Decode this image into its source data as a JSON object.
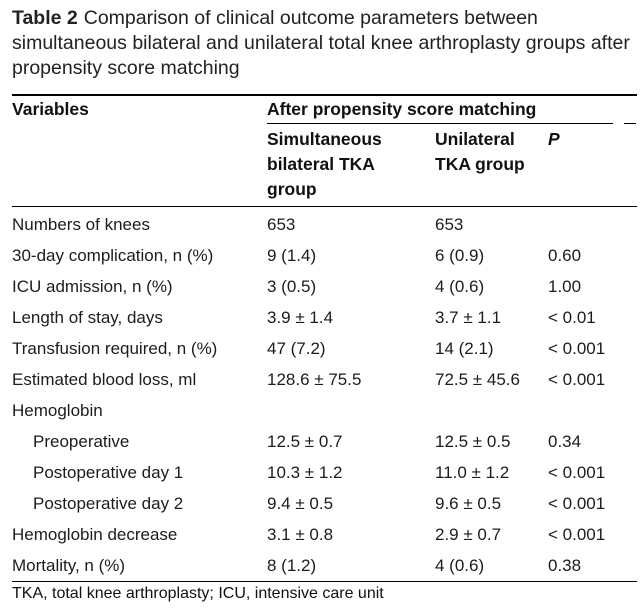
{
  "caption": {
    "label": "Table 2",
    "text": "Comparison of clinical outcome parameters between simultaneous bilateral and unilateral total knee arthroplasty groups after propensity score matching"
  },
  "header": {
    "variables": "Variables",
    "group": "After propensity score matching",
    "col1": [
      "Simultaneous",
      "bilateral TKA",
      "group"
    ],
    "col2": [
      "Unilateral",
      "TKA group"
    ],
    "col3": "P"
  },
  "rows": [
    {
      "variable": "Numbers of knees",
      "bilateral": "653",
      "unilateral": "653",
      "p": ""
    },
    {
      "variable": "30-day complication, n (%)",
      "bilateral": "9 (1.4)",
      "unilateral": "6 (0.9)",
      "p": "0.60"
    },
    {
      "variable": "ICU admission, n (%)",
      "bilateral": "3 (0.5)",
      "unilateral": "4 (0.6)",
      "p": "1.00"
    },
    {
      "variable": "Length of stay, days",
      "bilateral": "3.9 ± 1.4",
      "unilateral": "3.7 ± 1.1",
      "p": "< 0.01"
    },
    {
      "variable": "Transfusion required, n (%)",
      "bilateral": "47 (7.2)",
      "unilateral": "14 (2.1)",
      "p": "< 0.001"
    },
    {
      "variable": "Estimated blood loss, ml",
      "bilateral": "128.6 ± 75.5",
      "unilateral": "72.5 ± 45.6",
      "p": "< 0.001"
    },
    {
      "variable": "Hemoglobin",
      "bilateral": "",
      "unilateral": "",
      "p": ""
    },
    {
      "variable": "Preoperative",
      "bilateral": "12.5 ± 0.7",
      "unilateral": "12.5 ± 0.5",
      "p": "0.34",
      "indent": true
    },
    {
      "variable": "Postoperative day 1",
      "bilateral": "10.3 ± 1.2",
      "unilateral": "11.0 ± 1.2",
      "p": "< 0.001",
      "indent": true
    },
    {
      "variable": "Postoperative day 2",
      "bilateral": "9.4 ± 0.5",
      "unilateral": "9.6 ± 0.5",
      "p": "< 0.001",
      "indent": true
    },
    {
      "variable": "Hemoglobin decrease",
      "bilateral": "3.1 ± 0.8",
      "unilateral": "2.9 ± 0.7",
      "p": "< 0.001"
    },
    {
      "variable": "Mortality, n (%)",
      "bilateral": "8 (1.2)",
      "unilateral": "4 (0.6)",
      "p": "0.38"
    }
  ],
  "footnote": "TKA, total knee arthroplasty; ICU, intensive care unit"
}
